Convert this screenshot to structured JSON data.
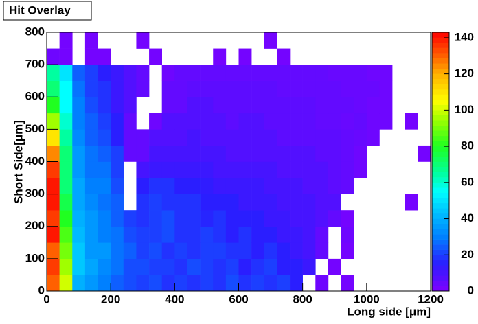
{
  "chart_data": {
    "type": "heatmap",
    "title": "Hit Overlay",
    "x_label": "Long side [μm]",
    "y_label": "Short Side[μm]",
    "xbins": [
      0,
      40,
      80,
      120,
      160,
      200,
      240,
      280,
      320,
      360,
      400,
      440,
      480,
      520,
      560,
      600,
      640,
      680,
      720,
      760,
      800,
      840,
      880,
      920,
      960,
      1000,
      1040,
      1080,
      1120,
      1160,
      1200
    ],
    "ybins": [
      0,
      50,
      100,
      150,
      200,
      250,
      300,
      350,
      400,
      450,
      500,
      550,
      600,
      650,
      700,
      750,
      800
    ],
    "xlim": [
      0,
      1200
    ],
    "ylim": [
      0,
      800
    ],
    "zlim": [
      0,
      143
    ],
    "xticks": [
      0,
      200,
      400,
      600,
      800,
      1000,
      1200
    ],
    "yticks": [
      0,
      100,
      200,
      300,
      400,
      500,
      600,
      700,
      800
    ],
    "zticks": [
      0,
      20,
      40,
      60,
      80,
      100,
      120,
      140
    ],
    "colorscale": [
      [
        0,
        "#7f00ff"
      ],
      [
        15,
        "#2a1eff"
      ],
      [
        30,
        "#0080ff"
      ],
      [
        45,
        "#00c8ff"
      ],
      [
        55,
        "#00ffff"
      ],
      [
        65,
        "#00ffa0"
      ],
      [
        80,
        "#20ff20"
      ],
      [
        95,
        "#a0ff00"
      ],
      [
        105,
        "#ffff00"
      ],
      [
        120,
        "#ffb000"
      ],
      [
        130,
        "#ff6000"
      ],
      [
        143,
        "#ff0000"
      ]
    ],
    "z": [
      [
        130,
        100,
        40,
        35,
        30,
        25,
        22,
        20,
        22,
        18,
        20,
        18,
        20,
        18,
        22,
        18,
        20,
        18,
        20,
        15,
        null,
        3,
        null,
        2,
        null,
        null,
        null,
        null,
        null,
        null
      ],
      [
        135,
        95,
        45,
        38,
        32,
        28,
        22,
        22,
        20,
        20,
        18,
        22,
        20,
        18,
        20,
        15,
        18,
        20,
        15,
        15,
        12,
        null,
        2,
        null,
        null,
        null,
        null,
        null,
        null,
        null
      ],
      [
        130,
        90,
        45,
        35,
        35,
        28,
        25,
        20,
        22,
        18,
        20,
        18,
        20,
        20,
        18,
        18,
        15,
        18,
        15,
        12,
        10,
        5,
        null,
        2,
        null,
        null,
        null,
        null,
        null,
        null
      ],
      [
        140,
        85,
        42,
        35,
        30,
        28,
        22,
        20,
        20,
        22,
        18,
        18,
        20,
        18,
        15,
        18,
        15,
        15,
        12,
        12,
        10,
        5,
        null,
        3,
        null,
        null,
        null,
        null,
        null,
        null
      ],
      [
        135,
        80,
        40,
        35,
        30,
        25,
        20,
        18,
        20,
        22,
        18,
        18,
        16,
        18,
        15,
        15,
        15,
        12,
        12,
        10,
        10,
        8,
        5,
        2,
        null,
        null,
        null,
        null,
        null,
        null
      ],
      [
        140,
        75,
        38,
        32,
        28,
        25,
        null,
        18,
        20,
        18,
        18,
        18,
        15,
        15,
        15,
        12,
        12,
        12,
        10,
        10,
        10,
        8,
        8,
        null,
        null,
        null,
        null,
        null,
        2,
        null
      ],
      [
        140,
        70,
        38,
        30,
        30,
        22,
        null,
        15,
        18,
        18,
        15,
        15,
        14,
        12,
        12,
        12,
        12,
        10,
        10,
        10,
        8,
        8,
        6,
        5,
        null,
        null,
        null,
        null,
        null,
        null
      ],
      [
        135,
        70,
        35,
        28,
        28,
        20,
        null,
        10,
        12,
        12,
        12,
        12,
        12,
        10,
        10,
        10,
        10,
        10,
        8,
        8,
        8,
        8,
        6,
        5,
        3,
        null,
        null,
        null,
        null,
        null
      ],
      [
        125,
        70,
        35,
        28,
        25,
        20,
        5,
        5,
        10,
        10,
        10,
        10,
        10,
        10,
        8,
        8,
        8,
        8,
        8,
        8,
        8,
        6,
        6,
        5,
        3,
        null,
        null,
        null,
        null,
        2
      ],
      [
        110,
        65,
        32,
        25,
        22,
        15,
        5,
        5,
        8,
        8,
        8,
        10,
        8,
        8,
        8,
        8,
        8,
        8,
        6,
        6,
        6,
        6,
        6,
        5,
        4,
        3,
        null,
        null,
        null,
        null
      ],
      [
        95,
        60,
        30,
        25,
        20,
        15,
        5,
        null,
        3,
        8,
        8,
        8,
        8,
        8,
        6,
        8,
        8,
        6,
        6,
        6,
        6,
        5,
        5,
        4,
        5,
        3,
        3,
        null,
        2,
        null
      ],
      [
        80,
        55,
        30,
        22,
        18,
        12,
        8,
        null,
        null,
        5,
        5,
        8,
        8,
        6,
        6,
        6,
        6,
        6,
        6,
        6,
        6,
        5,
        5,
        5,
        4,
        3,
        3,
        null,
        null,
        null
      ],
      [
        70,
        55,
        28,
        20,
        18,
        12,
        8,
        5,
        null,
        5,
        5,
        6,
        6,
        6,
        6,
        6,
        6,
        6,
        5,
        5,
        5,
        5,
        5,
        4,
        4,
        4,
        3,
        null,
        null,
        null
      ],
      [
        65,
        50,
        25,
        20,
        15,
        12,
        8,
        5,
        null,
        3,
        5,
        5,
        5,
        5,
        5,
        5,
        5,
        5,
        5,
        5,
        5,
        5,
        4,
        4,
        4,
        3,
        3,
        null,
        null,
        null
      ],
      [
        3,
        2,
        null,
        2,
        2,
        null,
        null,
        null,
        2,
        null,
        null,
        null,
        null,
        2,
        null,
        2,
        null,
        null,
        2,
        null,
        null,
        null,
        null,
        null,
        null,
        null,
        null,
        null,
        null,
        null
      ],
      [
        null,
        2,
        null,
        2,
        null,
        null,
        null,
        2,
        null,
        null,
        null,
        null,
        null,
        null,
        null,
        null,
        null,
        2,
        null,
        null,
        null,
        null,
        null,
        null,
        null,
        null,
        null,
        null,
        null,
        null
      ]
    ]
  }
}
